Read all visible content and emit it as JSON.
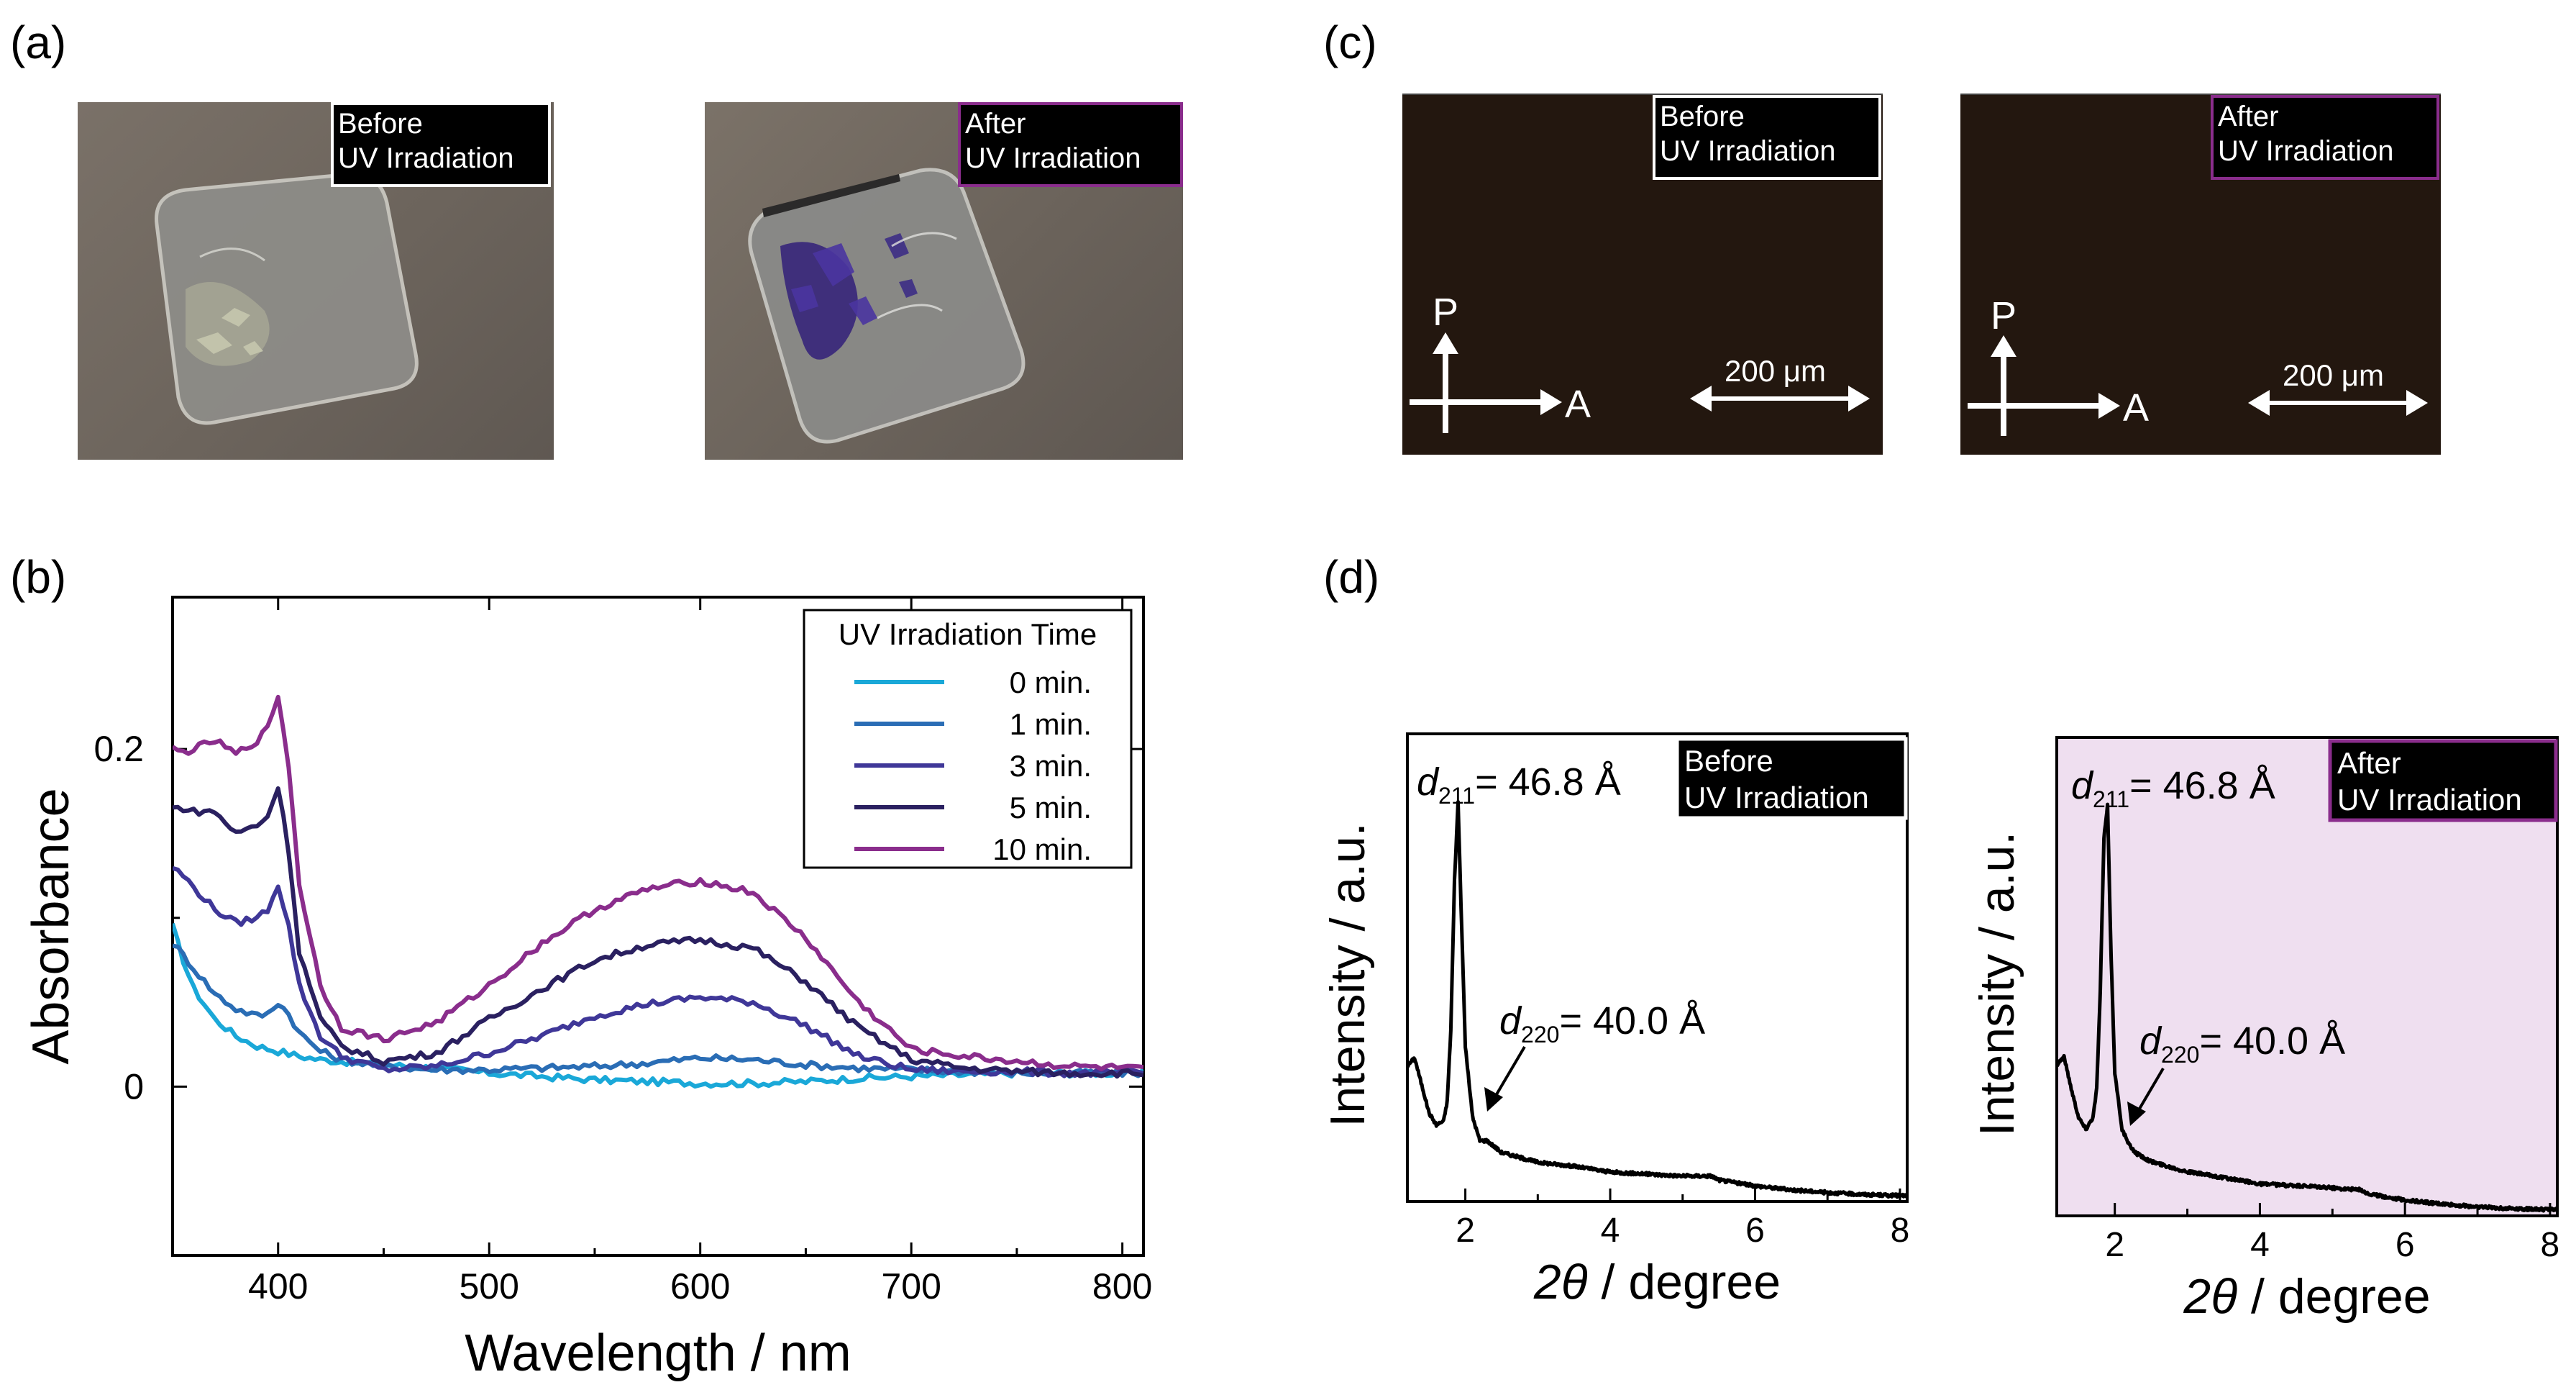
{
  "panels": {
    "a": {
      "label": "(a)",
      "photos": [
        {
          "tag_line1": "Before",
          "tag_line2": "UV Irradiation",
          "border_color": "#ffffff"
        },
        {
          "tag_line1": "After",
          "tag_line2": "UV Irradiation",
          "border_color": "#8a2d8c"
        }
      ]
    },
    "b": {
      "label": "(b)"
    },
    "c": {
      "label": "(c)",
      "micrographs": [
        {
          "tag_line1": "Before",
          "tag_line2": "UV Irradiation",
          "border_color": "#ffffff",
          "polarizer": "P",
          "analyzer": "A",
          "scalebar": "200 μm"
        },
        {
          "tag_line1": "After",
          "tag_line2": "UV Irradiation",
          "border_color": "#8a2d8c",
          "polarizer": "P",
          "analyzer": "A",
          "scalebar": "200 μm"
        }
      ]
    },
    "d": {
      "label": "(d)"
    }
  },
  "chart_data": [
    {
      "id": "b",
      "type": "line",
      "xlabel": "Wavelength / nm",
      "ylabel": "Absorbance",
      "xlim": [
        350,
        810
      ],
      "ylim": [
        -0.1,
        0.29
      ],
      "xticks": [
        400,
        500,
        600,
        700,
        800
      ],
      "yticks": [
        0,
        0.2
      ],
      "ytick_labels": [
        "0",
        "0.2"
      ],
      "legend": {
        "title": "UV Irradiation Time",
        "placement": "top-right"
      },
      "series": [
        {
          "name": "0 min.",
          "color": "#1aa8d8",
          "x": [
            350,
            355,
            360,
            370,
            380,
            390,
            400,
            410,
            420,
            430,
            450,
            475,
            500,
            525,
            550,
            575,
            600,
            625,
            650,
            675,
            700,
            725,
            750,
            775,
            800,
            810
          ],
          "y": [
            0.095,
            0.075,
            0.058,
            0.04,
            0.03,
            0.024,
            0.021,
            0.018,
            0.016,
            0.015,
            0.013,
            0.011,
            0.008,
            0.006,
            0.004,
            0.003,
            0.002,
            0.002,
            0.003,
            0.005,
            0.006,
            0.007,
            0.008,
            0.008,
            0.008,
            0.008
          ]
        },
        {
          "name": "1 min.",
          "color": "#2a6db5",
          "x": [
            350,
            355,
            360,
            370,
            380,
            390,
            395,
            400,
            405,
            410,
            420,
            430,
            450,
            475,
            500,
            525,
            550,
            575,
            600,
            625,
            650,
            675,
            700,
            725,
            750,
            775,
            800,
            810
          ],
          "y": [
            0.085,
            0.078,
            0.07,
            0.055,
            0.046,
            0.042,
            0.043,
            0.05,
            0.043,
            0.032,
            0.021,
            0.016,
            0.012,
            0.01,
            0.01,
            0.011,
            0.012,
            0.014,
            0.017,
            0.016,
            0.013,
            0.011,
            0.01,
            0.009,
            0.008,
            0.008,
            0.008,
            0.008
          ]
        },
        {
          "name": "3 min.",
          "color": "#3f3798",
          "x": [
            350,
            355,
            360,
            370,
            380,
            390,
            395,
            400,
            405,
            410,
            420,
            430,
            450,
            475,
            500,
            525,
            550,
            575,
            600,
            625,
            650,
            675,
            700,
            725,
            750,
            775,
            800,
            810
          ],
          "y": [
            0.13,
            0.125,
            0.118,
            0.105,
            0.097,
            0.1,
            0.105,
            0.12,
            0.095,
            0.06,
            0.03,
            0.018,
            0.01,
            0.012,
            0.02,
            0.03,
            0.042,
            0.049,
            0.053,
            0.05,
            0.036,
            0.018,
            0.01,
            0.009,
            0.009,
            0.008,
            0.008,
            0.008
          ]
        },
        {
          "name": "5 min.",
          "color": "#2a2060",
          "x": [
            350,
            355,
            360,
            370,
            380,
            390,
            395,
            400,
            405,
            410,
            420,
            430,
            450,
            475,
            500,
            525,
            550,
            575,
            600,
            625,
            650,
            675,
            700,
            725,
            750,
            775,
            800,
            810
          ],
          "y": [
            0.165,
            0.165,
            0.163,
            0.163,
            0.15,
            0.155,
            0.16,
            0.178,
            0.14,
            0.08,
            0.04,
            0.024,
            0.015,
            0.02,
            0.04,
            0.058,
            0.075,
            0.084,
            0.087,
            0.082,
            0.062,
            0.035,
            0.016,
            0.011,
            0.009,
            0.008,
            0.008,
            0.008
          ]
        },
        {
          "name": "10 min.",
          "color": "#8a2d8c",
          "x": [
            350,
            355,
            360,
            370,
            380,
            390,
            395,
            400,
            405,
            410,
            420,
            430,
            450,
            475,
            500,
            525,
            550,
            575,
            600,
            625,
            650,
            675,
            700,
            725,
            750,
            775,
            800,
            810
          ],
          "y": [
            0.2,
            0.198,
            0.2,
            0.205,
            0.197,
            0.205,
            0.212,
            0.232,
            0.19,
            0.12,
            0.06,
            0.035,
            0.028,
            0.038,
            0.06,
            0.085,
            0.105,
            0.117,
            0.122,
            0.115,
            0.088,
            0.05,
            0.022,
            0.018,
            0.015,
            0.012,
            0.011,
            0.01
          ]
        }
      ]
    },
    {
      "id": "d-before",
      "type": "line",
      "xlabel_symbol": "2θ",
      "xlabel_unit": " / degree",
      "ylabel": "Intensity / a.u.",
      "xlim": [
        1.2,
        8.1
      ],
      "ylim": [
        0,
        1
      ],
      "xticks": [
        2,
        4,
        6,
        8
      ],
      "background": "#ffffff",
      "tag": {
        "line1": "Before",
        "line2": "UV Irradiation",
        "border_color": "#ffffff"
      },
      "peak_labels": [
        {
          "letter": "d",
          "sub": "211",
          "value": "= 46.8 Å"
        },
        {
          "letter": "d",
          "sub": "220",
          "value": "= 40.0 Å"
        }
      ],
      "series": [
        {
          "x": [
            1.2,
            1.3,
            1.4,
            1.5,
            1.6,
            1.7,
            1.75,
            1.8,
            1.85,
            1.9,
            1.95,
            2.0,
            2.1,
            2.2,
            2.3,
            2.5,
            3.0,
            3.5,
            4.0,
            4.5,
            5.0,
            5.4,
            5.5,
            6.0,
            6.5,
            7.0,
            7.5,
            8.0,
            8.1
          ],
          "y": [
            0.33,
            0.35,
            0.28,
            0.21,
            0.18,
            0.19,
            0.24,
            0.42,
            0.8,
            1.0,
            0.68,
            0.38,
            0.2,
            0.14,
            0.14,
            0.11,
            0.085,
            0.075,
            0.06,
            0.055,
            0.05,
            0.05,
            0.04,
            0.025,
            0.015,
            0.008,
            0.003,
            0.0,
            0.0
          ]
        }
      ]
    },
    {
      "id": "d-after",
      "type": "line",
      "xlabel_symbol": "2θ",
      "xlabel_unit": " / degree",
      "ylabel": "Intensity / a.u.",
      "xlim": [
        1.2,
        8.1
      ],
      "ylim": [
        0,
        1
      ],
      "xticks": [
        2,
        4,
        6,
        8
      ],
      "background": "#efdff0",
      "tag": {
        "line1": "After",
        "line2": "UV Irradiation",
        "border_color": "#8a2d8c"
      },
      "peak_labels": [
        {
          "letter": "d",
          "sub": "211",
          "value": "= 46.8 Å"
        },
        {
          "letter": "d",
          "sub": "220",
          "value": "= 40.0 Å"
        }
      ],
      "series": [
        {
          "x": [
            1.2,
            1.3,
            1.4,
            1.5,
            1.6,
            1.7,
            1.75,
            1.8,
            1.85,
            1.9,
            1.95,
            2.0,
            2.1,
            2.2,
            2.3,
            2.5,
            3.0,
            3.5,
            4.0,
            4.5,
            5.0,
            5.4,
            5.5,
            6.0,
            6.5,
            7.0,
            7.5,
            8.0,
            8.1
          ],
          "y": [
            0.36,
            0.38,
            0.3,
            0.23,
            0.2,
            0.23,
            0.3,
            0.54,
            0.92,
            1.0,
            0.62,
            0.34,
            0.2,
            0.16,
            0.14,
            0.12,
            0.095,
            0.08,
            0.065,
            0.06,
            0.055,
            0.05,
            0.04,
            0.025,
            0.015,
            0.008,
            0.004,
            0.001,
            0.0
          ]
        }
      ]
    }
  ]
}
